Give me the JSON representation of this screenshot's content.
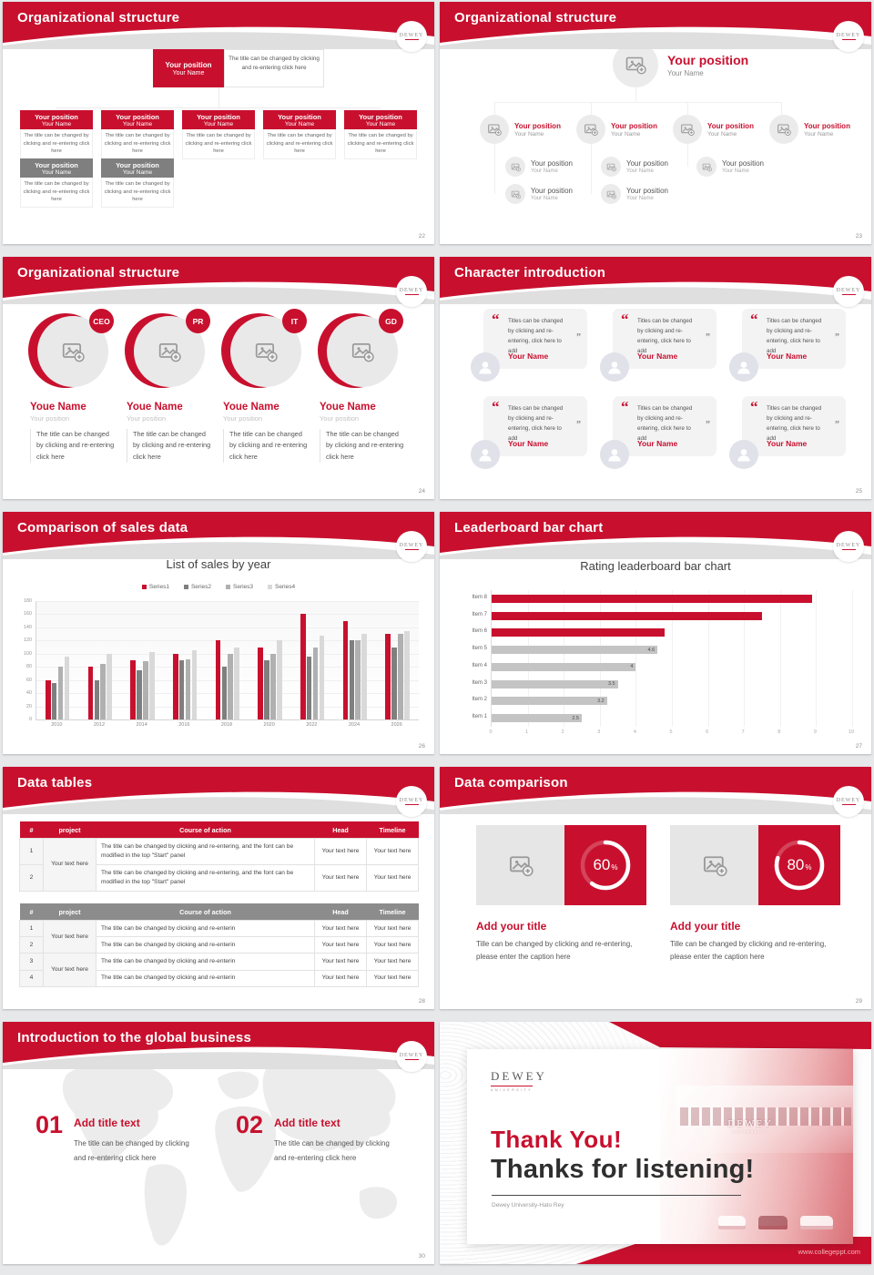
{
  "brand": {
    "name": "DEWEY",
    "sub": "UNIVERSITY"
  },
  "colors": {
    "primary": "#C8102E",
    "gray_node": "#7f7f7f",
    "gray_header": "#8c8c8c"
  },
  "slides": {
    "s22": {
      "title": "Organizational structure",
      "page": "22",
      "top": {
        "position": "Your position",
        "name": "Your Name"
      },
      "top_note": "The title can be changed by clicking and re-entering click here",
      "row1": [
        {
          "position": "Your position",
          "name": "Your Name",
          "note": "The title can be changed by clicking and re-entering click here"
        },
        {
          "position": "Your position",
          "name": "Your Name",
          "note": "The title can be changed by clicking and re-entering click here"
        },
        {
          "position": "Your position",
          "name": "Your Name",
          "note": "The title can be changed by clicking and re-entering click here"
        },
        {
          "position": "Your position",
          "name": "Your Name",
          "note": "The title can be changed by clicking and re-entering click here"
        },
        {
          "position": "Your position",
          "name": "Your Name",
          "note": "The title can be changed by clicking and re-entering click here"
        }
      ],
      "row2": [
        {
          "position": "Your position",
          "name": "Your Name",
          "note": "The title can be changed by clicking and re-entering click here"
        },
        {
          "position": "Your position",
          "name": "Your Name",
          "note": "The title can be changed by clicking and re-entering click here"
        }
      ]
    },
    "s23": {
      "title": "Organizational structure",
      "page": "23",
      "root": {
        "position": "Your position",
        "name": "Your Name"
      },
      "level2": [
        {
          "position": "Your position",
          "name": "Your Name"
        },
        {
          "position": "Your position",
          "name": "Your Name"
        },
        {
          "position": "Your position",
          "name": "Your Name"
        },
        {
          "position": "Your position",
          "name": "Your Name"
        }
      ],
      "level3_row1": [
        {
          "position": "Your position",
          "name": "Your Name"
        },
        {
          "position": "Your position",
          "name": "Your Name"
        },
        {
          "position": "Your position",
          "name": "Your Name"
        }
      ],
      "level3_row2": [
        {
          "position": "Your position",
          "name": "Your Name"
        },
        {
          "position": "Your position",
          "name": "Your Name"
        }
      ]
    },
    "s24": {
      "title": "Organizational structure",
      "page": "24",
      "members": [
        {
          "badge": "CEO",
          "name": "Youe Name",
          "role": "Your position",
          "note": "The title can be changed by clicking and re-entering click here"
        },
        {
          "badge": "PR",
          "name": "Youe Name",
          "role": "Your position",
          "note": "The title can be changed by clicking and re-entering click here"
        },
        {
          "badge": "IT",
          "name": "Youe Name",
          "role": "Your position",
          "note": "The title can be changed by clicking and re-entering click here"
        },
        {
          "badge": "GD",
          "name": "Youe Name",
          "role": "Your position",
          "note": "The title can be changed by clicking and re-entering click here"
        }
      ]
    },
    "s25": {
      "title": "Character introduction",
      "page": "25",
      "open_quote": "“",
      "close_quote": "”",
      "row1": [
        {
          "quote": "Titles can be changed by clicking and re-entering, click here to add",
          "name": "Your Name"
        },
        {
          "quote": "Titles can be changed by clicking and re-entering, click here to add",
          "name": "Your Name"
        },
        {
          "quote": "Titles can be changed by clicking and re-entering, click here to add",
          "name": "Your Name"
        }
      ],
      "row2": [
        {
          "quote": "Titles can be changed by clicking and re-entering, click here to add",
          "name": "Your Name"
        },
        {
          "quote": "Titles can be changed by clicking and re-entering, click here to add",
          "name": "Your Name"
        },
        {
          "quote": "Titles can be changed by clicking and re-entering, click here to add",
          "name": "Your Name"
        }
      ]
    },
    "s26": {
      "title": "Comparison of sales data",
      "page": "26"
    },
    "s27": {
      "title": "Leaderboard bar chart",
      "page": "27"
    },
    "s28": {
      "title": "Data tables",
      "page": "28",
      "table1": {
        "headers": [
          "#",
          "project",
          "Course of action",
          "Head",
          "Timeline"
        ],
        "project": "Your text here",
        "rows": [
          {
            "num": "1",
            "course": "The title can be changed by clicking and re-entering, and the font can be modified in the top \"Start\" panel",
            "head": "Your text here",
            "timeline": "Your text here"
          },
          {
            "num": "2",
            "course": "The title can be changed by clicking and re-entering, and the font can be modified in the top \"Start\" panel",
            "head": "Your text here",
            "timeline": "Your text here"
          }
        ]
      },
      "table2": {
        "headers": [
          "#",
          "project",
          "Course of action",
          "Head",
          "Timeline"
        ],
        "project1": "Your text here",
        "project2": "Your text here",
        "rows": [
          {
            "num": "1",
            "course": "The title can be changed by clicking and re-enterin",
            "head": "Your text here",
            "timeline": "Your text here"
          },
          {
            "num": "2",
            "course": "The title can be changed by clicking and re-enterin",
            "head": "Your text here",
            "timeline": "Your text here"
          },
          {
            "num": "3",
            "course": "The title can be changed by clicking and re-enterin",
            "head": "Your text here",
            "timeline": "Your text here"
          },
          {
            "num": "4",
            "course": "The title can be changed by clicking and re-enterin",
            "head": "Your text here",
            "timeline": "Your text here"
          }
        ]
      }
    },
    "s29": {
      "title": "Data comparison",
      "page": "29",
      "panels": [
        {
          "percent": 60,
          "percent_label": "60",
          "title": "Add your title",
          "caption": "Tille can be changed by clicking and re-entering, please enter the caption here"
        },
        {
          "percent": 80,
          "percent_label": "80",
          "title": "Add your title",
          "caption": "Tille can be changed by clicking and re-entering, please enter the caption here"
        }
      ]
    },
    "s30": {
      "title": "Introduction to the global business",
      "page": "30",
      "items": [
        {
          "num": "01",
          "title": "Add title text",
          "note": "The title can be changed by clicking and re-entering click here"
        },
        {
          "num": "02",
          "title": "Add title text",
          "note": "The title can be changed by clicking and re-entering click here"
        }
      ]
    },
    "s31": {
      "logo": "DEWEY",
      "logo_sub": "UNIVERSITY",
      "thank_main": "Thank You!",
      "thank_sub": "Thanks for listening!",
      "credit": "Dewey University-Hato Rey",
      "building_sign": "DEWEY",
      "building_sign_sub": "UNIVERSITY",
      "website": "www.collegeppt.com"
    }
  },
  "chart_data": [
    {
      "type": "bar",
      "title": "List of sales by year",
      "categories": [
        "2010",
        "2012",
        "2014",
        "2016",
        "2018",
        "2020",
        "2022",
        "2024",
        "2026"
      ],
      "series": [
        {
          "name": "Series1",
          "color": "#C8102E",
          "values": [
            60,
            80,
            90,
            100,
            120,
            110,
            160,
            150,
            130
          ]
        },
        {
          "name": "Series2",
          "color": "#7f7f7f",
          "values": [
            55,
            60,
            75,
            90,
            80,
            90,
            95,
            120,
            110
          ]
        },
        {
          "name": "Series3",
          "color": "#b0b0b0",
          "values": [
            80,
            85,
            88,
            92,
            100,
            100,
            110,
            120,
            130
          ]
        },
        {
          "name": "Series4",
          "color": "#d9d9d9",
          "values": [
            95,
            100,
            102,
            105,
            110,
            120,
            127,
            130,
            135
          ]
        }
      ],
      "xlabel": "",
      "ylabel": "",
      "ylim": [
        0,
        180
      ],
      "ytick_step": 20,
      "legend_position": "top",
      "grid": true
    },
    {
      "type": "bar-horizontal",
      "title": "Rating leaderboard bar chart",
      "categories": [
        "Item 8",
        "Item 7",
        "Item 6",
        "Item 5",
        "Item 4",
        "Item 3",
        "Item 2",
        "Item 1"
      ],
      "values": [
        8.9,
        7.5,
        4.8,
        4.6,
        4,
        3.5,
        3.2,
        2.5
      ],
      "colors": [
        "#C8102E",
        "#C8102E",
        "#C8102E",
        "#c4c4c4",
        "#c4c4c4",
        "#c4c4c4",
        "#c4c4c4",
        "#c4c4c4"
      ],
      "labels": [
        "",
        "",
        "",
        "4.6",
        "4",
        "3.5",
        "3.2",
        "2.5"
      ],
      "xlim": [
        0,
        10
      ],
      "xticks": [
        0,
        1,
        2,
        3,
        4,
        5,
        6,
        7,
        8,
        9,
        10
      ],
      "grid": true
    }
  ]
}
